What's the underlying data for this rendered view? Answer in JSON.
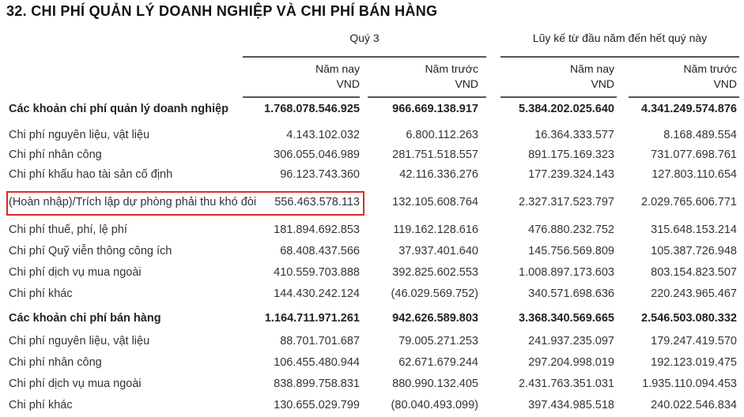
{
  "title": "32. CHI PHÍ QUẢN LÝ DOANH NGHIỆP VÀ CHI PHÍ BÁN HÀNG",
  "header": {
    "group1": "Quý 3",
    "group2": "Lũy kế từ đầu năm đến hết quý này",
    "columns": [
      {
        "label": "Năm nay",
        "unit": "VND"
      },
      {
        "label": "Năm trước",
        "unit": "VND"
      },
      {
        "label": "Năm nay",
        "unit": "VND"
      },
      {
        "label": "Năm trước",
        "unit": "VND"
      }
    ]
  },
  "highlight_color": "#e0262a",
  "rows": [
    {
      "label": "Các khoản chi phí quản lý doanh nghiệp",
      "bold": true,
      "values": [
        "1.768.078.546.925",
        "966.669.138.917",
        "5.384.202.025.640",
        "4.341.249.574.876"
      ]
    },
    {
      "label": "Chi phí nguyên liệu, vật liệu",
      "values": [
        "4.143.102.032",
        "6.800.112.263",
        "16.364.333.577",
        "8.168.489.554"
      ]
    },
    {
      "label": "Chi phí nhân công",
      "values": [
        "306.055.046.989",
        "281.751.518.557",
        "891.175.169.323",
        "731.077.698.761"
      ]
    },
    {
      "label": "Chi phí khấu hao tài sản cố định",
      "values": [
        "96.123.743.360",
        "42.116.336.276",
        "177.239.324.143",
        "127.803.110.654"
      ]
    },
    {
      "label": "(Hoàn nhập)/Trích lập dự phòng phải thu khó đòi",
      "highlighted": true,
      "values": [
        "556.463.578.113",
        "132.105.608.764",
        "2.327.317.523.797",
        "2.029.765.606.771"
      ]
    },
    {
      "label": "Chi phí thuế, phí, lệ phí",
      "values": [
        "181.894.692.853",
        "119.162.128.616",
        "476.880.232.752",
        "315.648.153.214"
      ]
    },
    {
      "label": "Chi phí Quỹ viễn thông công ích",
      "values": [
        "68.408.437.566",
        "37.937.401.640",
        "145.756.569.809",
        "105.387.726.948"
      ]
    },
    {
      "label": "Chi phí dịch vụ mua ngoài",
      "values": [
        "410.559.703.888",
        "392.825.602.553",
        "1.008.897.173.603",
        "803.154.823.507"
      ]
    },
    {
      "label": "Chi phí khác",
      "values": [
        "144.430.242.124",
        "(46.029.569.752)",
        "340.571.698.636",
        "220.243.965.467"
      ]
    },
    {
      "label": "Các khoản chi phí bán hàng",
      "bold": true,
      "values": [
        "1.164.711.971.261",
        "942.626.589.803",
        "3.368.340.569.665",
        "2.546.503.080.332"
      ]
    },
    {
      "label": "Chi phí nguyên liệu, vật liệu",
      "values": [
        "88.701.701.687",
        "79.005.271.253",
        "241.937.235.097",
        "179.247.419.570"
      ]
    },
    {
      "label": "Chi phí nhân công",
      "values": [
        "106.455.480.944",
        "62.671.679.244",
        "297.204.998.019",
        "192.123.019.475"
      ]
    },
    {
      "label": "Chi phí dịch vụ mua ngoài",
      "values": [
        "838.899.758.831",
        "880.990.132.405",
        "2.431.763.351.031",
        "1.935.110.094.453"
      ]
    },
    {
      "label": "Chi phí khác",
      "values": [
        "130.655.029.799",
        "(80.040.493.099)",
        "397.434.985.518",
        "240.022.546.834"
      ]
    }
  ]
}
